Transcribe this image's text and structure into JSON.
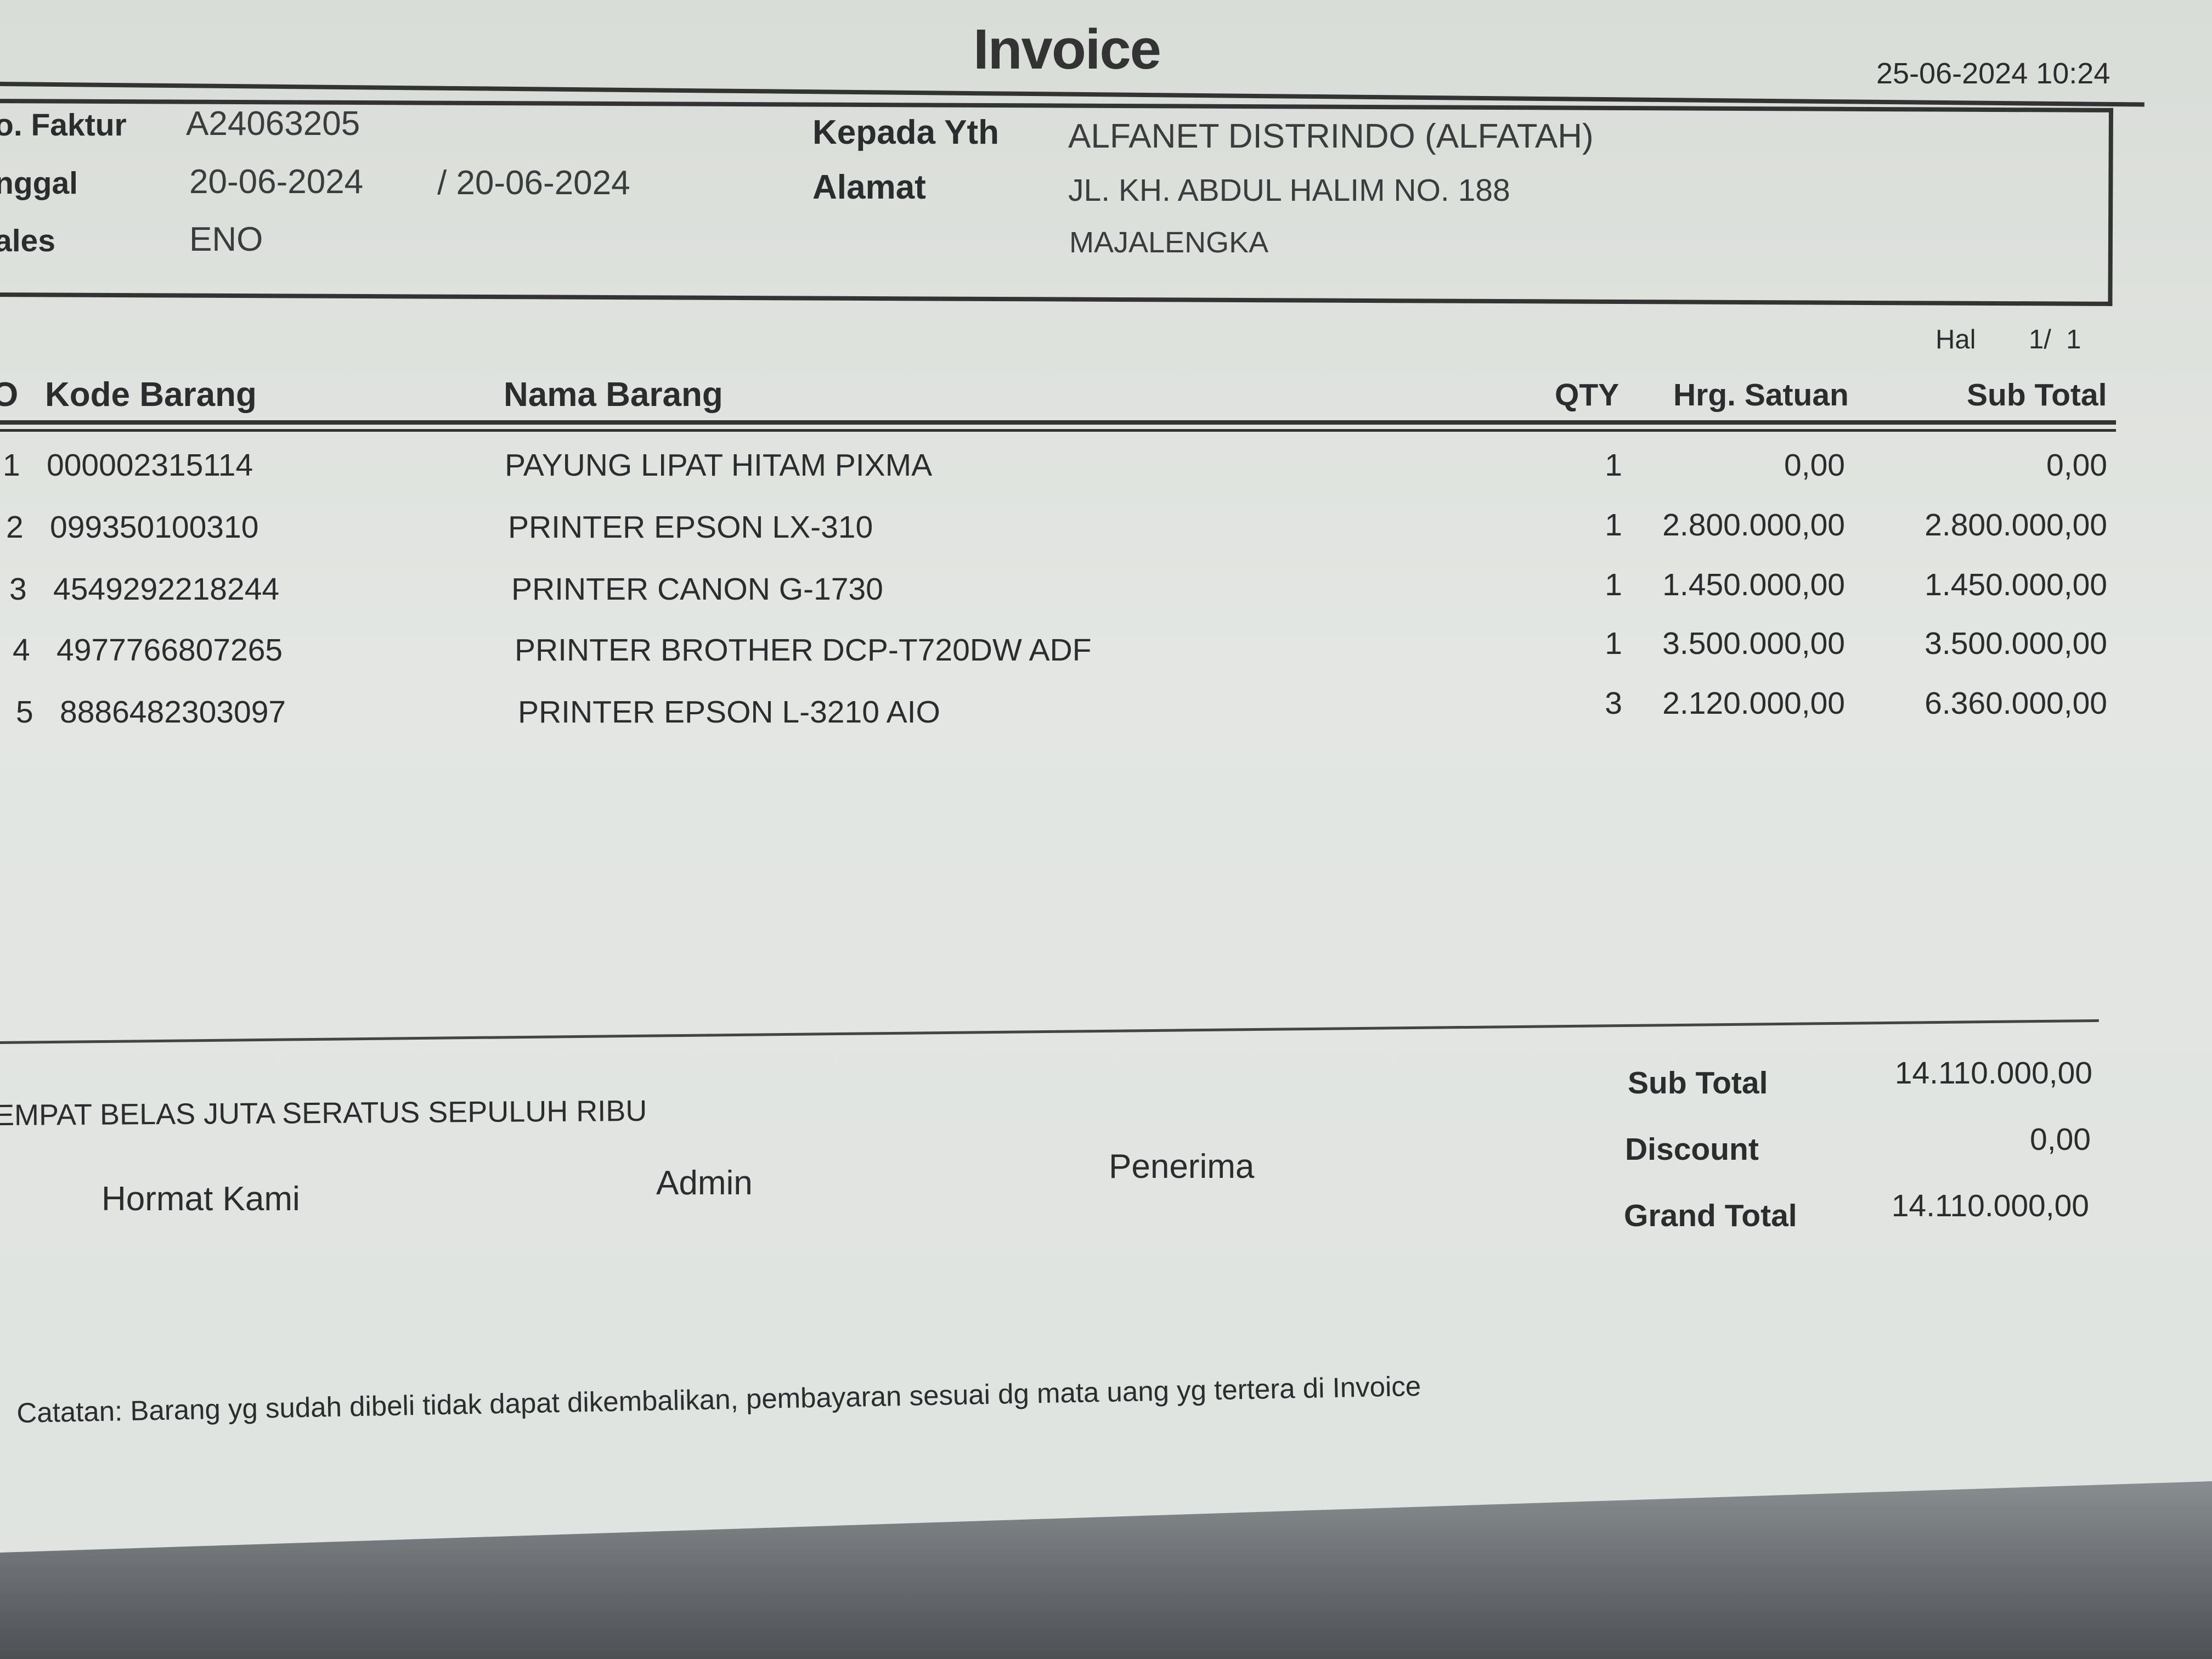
{
  "title": "Invoice",
  "printed_at": "25-06-2024 10:24",
  "info": {
    "faktur_label": "o. Faktur",
    "faktur_value": "A24063205",
    "tanggal_label": "nggal",
    "tanggal_value": "20-06-2024",
    "tanggal_value2": "/ 20-06-2024",
    "sales_label": "ales",
    "sales_value": "ENO",
    "kepada_label": "Kepada Yth",
    "kepada_value": "ALFANET DISTRINDO (ALFATAH)",
    "alamat_label": "Alamat",
    "alamat_line1": "JL. KH. ABDUL HALIM NO. 188",
    "alamat_line2": "MAJALENGKA"
  },
  "page": {
    "label": "Hal",
    "value": "1/  1"
  },
  "table": {
    "headers": {
      "no": "O",
      "kode": "Kode Barang",
      "nama": "Nama Barang",
      "qty": "QTY",
      "harga": "Hrg. Satuan",
      "subtotal": "Sub Total"
    },
    "rows": [
      {
        "no": "1",
        "kode": "000002315114",
        "nama": "PAYUNG LIPAT HITAM PIXMA",
        "qty": "1",
        "harga": "0,00",
        "subtotal": "0,00"
      },
      {
        "no": "2",
        "kode": "099350100310",
        "nama": "PRINTER EPSON LX-310",
        "qty": "1",
        "harga": "2.800.000,00",
        "subtotal": "2.800.000,00"
      },
      {
        "no": "3",
        "kode": "4549292218244",
        "nama": "PRINTER CANON G-1730",
        "qty": "1",
        "harga": "1.450.000,00",
        "subtotal": "1.450.000,00"
      },
      {
        "no": "4",
        "kode": "4977766807265",
        "nama": "PRINTER BROTHER DCP-T720DW ADF",
        "qty": "1",
        "harga": "3.500.000,00",
        "subtotal": "3.500.000,00"
      },
      {
        "no": "5",
        "kode": "8886482303097",
        "nama": "PRINTER EPSON L-3210 AIO",
        "qty": "3",
        "harga": "2.120.000,00",
        "subtotal": "6.360.000,00"
      }
    ]
  },
  "terbilang": "EMPAT BELAS JUTA SERATUS SEPULUH RIBU",
  "signatures": {
    "hormat": "Hormat Kami",
    "admin": "Admin",
    "penerima": "Penerima"
  },
  "totals": {
    "subtotal_label": "Sub Total",
    "subtotal_value": "14.110.000,00",
    "discount_label": "Discount",
    "discount_value": "0,00",
    "grand_label": "Grand Total",
    "grand_value": "14.110.000,00"
  },
  "note": "Catatan: Barang yg sudah dibeli tidak dapat dikembalikan, pembayaran sesuai dg mata uang yg tertera di Invoice"
}
